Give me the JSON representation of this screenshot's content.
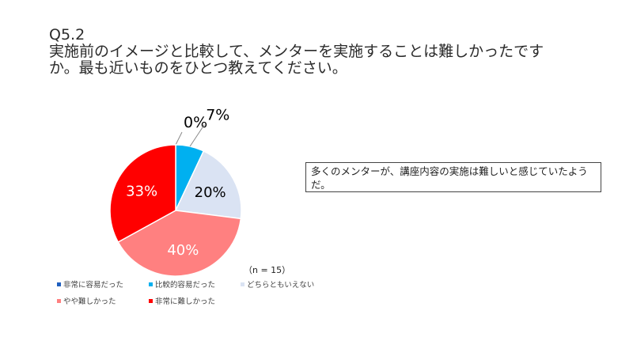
{
  "question": {
    "id": "Q5.2",
    "text": "実施前のイメージと比較して、メンターを実施することは難しかったですか。最も近いものをひとつ教えてください。"
  },
  "note": "多くのメンターが、講座内容の実施は難しいと感じていたようだ。",
  "sample_size_label": "（n = 15）",
  "chart_data": {
    "type": "pie",
    "title": "",
    "categories": [
      "非常に容易だった",
      "比較的容易だった",
      "どちらともいえない",
      "やや難しかった",
      "非常に難しかった"
    ],
    "values": [
      0,
      7,
      20,
      40,
      33
    ],
    "labels": [
      "0%",
      "7%",
      "20%",
      "40%",
      "33%"
    ],
    "colors": [
      "#1f5fbf",
      "#00b0f0",
      "#dae3f3",
      "#ff8080",
      "#ff0000"
    ],
    "label_colors": [
      "#000000",
      "#000000",
      "#000000",
      "#ffffff",
      "#ffffff"
    ],
    "legend_position": "bottom-left"
  }
}
